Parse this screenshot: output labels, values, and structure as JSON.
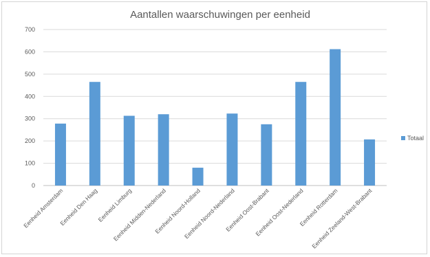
{
  "chart_data": {
    "type": "bar",
    "title": "Aantallen waarschuwingen per eenheid",
    "categories": [
      "Eenheid Amsterdam",
      "Eenheid Den Haag",
      "Eenheid Limburg",
      "Eenheid Midden-Nederland",
      "Eenheid Noord-Holland",
      "Eenheid Noord-Nederland",
      "Eenheid Oost-Brabant",
      "Eenheid Oost-Nederland",
      "Eenheid Rotterdam",
      "Eenheid Zeeland-West-Brabant"
    ],
    "series": [
      {
        "name": "Totaal",
        "color": "#5b9bd5",
        "values": [
          278,
          465,
          313,
          320,
          80,
          323,
          275,
          465,
          612,
          207
        ]
      }
    ],
    "ylim": [
      0,
      700
    ],
    "yticks": [
      "0",
      "100",
      "200",
      "300",
      "400",
      "500",
      "600",
      "700"
    ],
    "grid": true,
    "legend_position": "right"
  }
}
